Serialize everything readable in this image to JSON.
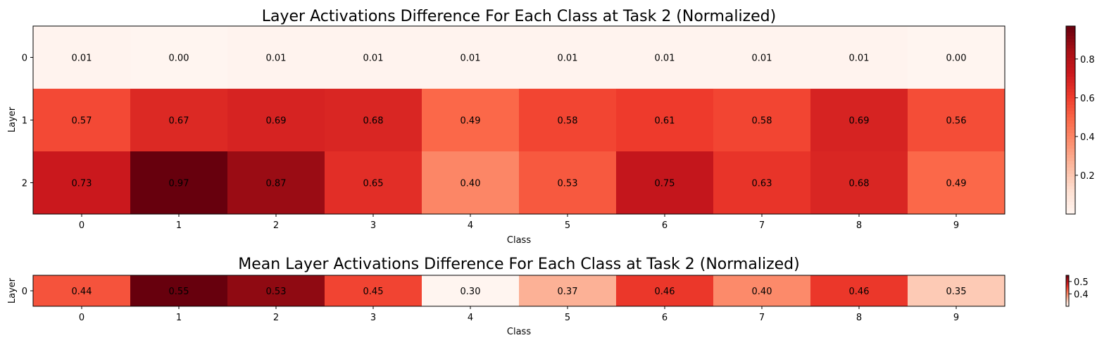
{
  "chart_data": [
    {
      "type": "heatmap",
      "title": "Layer Activations Difference For Each Class at Task 2 (Normalized)",
      "xlabel": "Class",
      "ylabel": "Layer",
      "x": [
        "0",
        "1",
        "2",
        "3",
        "4",
        "5",
        "6",
        "7",
        "8",
        "9"
      ],
      "y": [
        "0",
        "1",
        "2"
      ],
      "values": [
        [
          0.01,
          0.0,
          0.01,
          0.01,
          0.01,
          0.01,
          0.01,
          0.01,
          0.01,
          0.0
        ],
        [
          0.57,
          0.67,
          0.69,
          0.68,
          0.49,
          0.58,
          0.61,
          0.58,
          0.69,
          0.56
        ],
        [
          0.73,
          0.97,
          0.87,
          0.65,
          0.4,
          0.53,
          0.75,
          0.63,
          0.68,
          0.49
        ]
      ],
      "value_labels": [
        [
          "0.01",
          "0.00",
          "0.01",
          "0.01",
          "0.01",
          "0.01",
          "0.01",
          "0.01",
          "0.01",
          "0.00"
        ],
        [
          "0.57",
          "0.67",
          "0.69",
          "0.68",
          "0.49",
          "0.58",
          "0.61",
          "0.58",
          "0.69",
          "0.56"
        ],
        [
          "0.73",
          "0.97",
          "0.87",
          "0.65",
          "0.40",
          "0.53",
          "0.75",
          "0.63",
          "0.68",
          "0.49"
        ]
      ],
      "colormap": "Reds",
      "colorbar": {
        "range": [
          0.0,
          0.97
        ],
        "ticks": [
          0.2,
          0.4,
          0.6,
          0.8
        ],
        "tick_labels": [
          "0.2",
          "0.4",
          "0.6",
          "0.8"
        ]
      }
    },
    {
      "type": "heatmap",
      "title": "Mean Layer Activations Difference For Each Class at Task 2 (Normalized)",
      "xlabel": "Class",
      "ylabel": "Layer",
      "x": [
        "0",
        "1",
        "2",
        "3",
        "4",
        "5",
        "6",
        "7",
        "8",
        "9"
      ],
      "y": [
        "0"
      ],
      "values": [
        [
          0.44,
          0.55,
          0.53,
          0.45,
          0.3,
          0.37,
          0.46,
          0.4,
          0.46,
          0.35
        ]
      ],
      "value_labels": [
        [
          "0.44",
          "0.55",
          "0.53",
          "0.45",
          "0.30",
          "0.37",
          "0.46",
          "0.40",
          "0.46",
          "0.35"
        ]
      ],
      "colormap": "Reds",
      "colorbar": {
        "range": [
          0.3,
          0.55
        ],
        "ticks": [
          0.4,
          0.5
        ],
        "tick_labels": [
          "0.4",
          "0.5"
        ]
      }
    }
  ]
}
